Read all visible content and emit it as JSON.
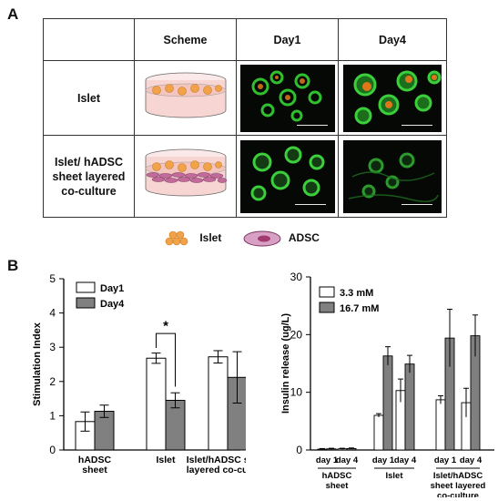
{
  "panel_a": {
    "letter": "A",
    "headers": [
      "Scheme",
      "Day1",
      "Day4"
    ],
    "rows": [
      {
        "label": "Islet"
      },
      {
        "label": "Islet/ hADSC sheet layered co-culture"
      }
    ],
    "legend": {
      "islet": "Islet",
      "adsc": "ADSC"
    },
    "colors": {
      "membrane": "#1fa51f",
      "insulin": "#e07a1a",
      "islet_cluster": "#f2a34a",
      "adsc_cell": "#c26a9a"
    }
  },
  "panel_b": {
    "letter": "B"
  },
  "chart_data": [
    {
      "type": "bar",
      "ylabel": "Stimulation Index",
      "ylim": [
        0,
        5
      ],
      "yticks": [
        0,
        1,
        2,
        3,
        4,
        5
      ],
      "categories": [
        "hADSC sheet",
        "Islet",
        "Islet/hADSC sheet layered co-culture"
      ],
      "series": [
        {
          "name": "Day1",
          "color": "#ffffff",
          "values": [
            0.83,
            2.68,
            2.72
          ],
          "errors": [
            0.28,
            0.15,
            0.18
          ]
        },
        {
          "name": "Day4",
          "color": "#808080",
          "values": [
            1.13,
            1.45,
            2.12
          ],
          "errors": [
            0.18,
            0.22,
            0.75
          ]
        }
      ],
      "annotations": [
        {
          "text": "*",
          "between": "Islet Day1 and Islet Day4"
        }
      ],
      "legend": "top-left"
    },
    {
      "type": "bar",
      "ylabel": "Insulin release (ug/L)",
      "ylim": [
        0,
        30
      ],
      "yticks": [
        0,
        10,
        20,
        30
      ],
      "categories": [
        "day 1",
        "day 4",
        "day 1",
        "day 4",
        "day 1",
        "day 4"
      ],
      "groups": [
        "hADSC sheet",
        "Islet",
        "Islet/hADSC sheet layered co-culture"
      ],
      "series": [
        {
          "name": "3.3 mM",
          "color": "#ffffff",
          "values": [
            0.15,
            0.2,
            6.0,
            10.3,
            8.7,
            8.2
          ],
          "errors": [
            0.1,
            0.1,
            0.3,
            2.0,
            0.7,
            2.5
          ]
        },
        {
          "name": "16.7 mM",
          "color": "#808080",
          "values": [
            0.2,
            0.25,
            16.3,
            14.9,
            19.4,
            19.8
          ],
          "errors": [
            0.1,
            0.1,
            1.6,
            1.5,
            5.0,
            3.6
          ]
        }
      ],
      "legend": "top-left"
    }
  ]
}
